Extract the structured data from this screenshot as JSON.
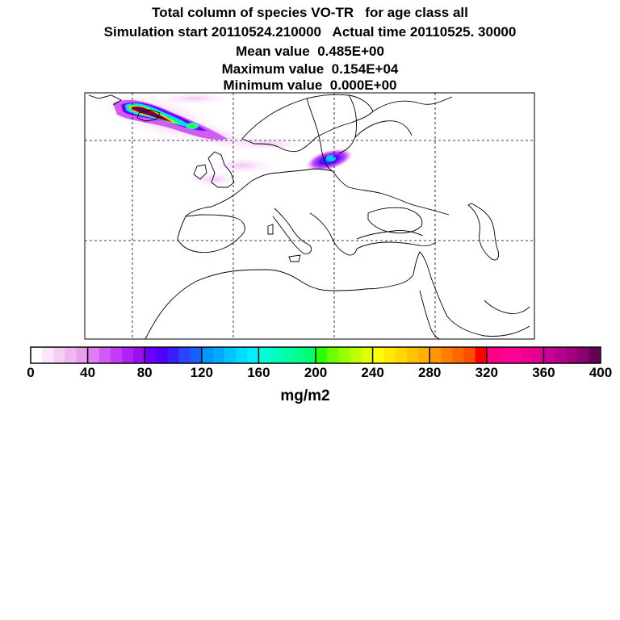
{
  "titles": {
    "line1": "Total column of species VO-TR   for age class all",
    "line2": "Simulation start 20110524.210000   Actual time 20110525. 30000",
    "line3": "Mean value  0.485E+00",
    "line4": "Maximum value  0.154E+04",
    "line5": "Minimum value  0.000E+00"
  },
  "colorbar": {
    "unit": "mg/m2",
    "tick_labels": [
      "0",
      "40",
      "80",
      "120",
      "160",
      "200",
      "240",
      "280",
      "320",
      "360",
      "400"
    ],
    "colors": [
      "#ffffff",
      "#fce6fc",
      "#f5cef5",
      "#eeb6f2",
      "#e6a0ee",
      "#e17ef3",
      "#d25af5",
      "#c43cf7",
      "#b020f7",
      "#9a10f0",
      "#6b00ff",
      "#5000ff",
      "#3a1cff",
      "#2a44ff",
      "#1560ff",
      "#0096ff",
      "#00aaff",
      "#00c4ff",
      "#00dcff",
      "#00f0ff",
      "#00ffd8",
      "#00ffbc",
      "#00ffa4",
      "#00ff8c",
      "#00ff70",
      "#28ff00",
      "#6cff00",
      "#96ff00",
      "#beff00",
      "#e0ff00",
      "#ffff00",
      "#ffeb00",
      "#ffd800",
      "#ffc400",
      "#ffb000",
      "#ff9800",
      "#ff8000",
      "#ff6800",
      "#ff4c00",
      "#ff0000",
      "#ff0080",
      "#ff0090",
      "#ff0098",
      "#f0008c",
      "#e20090",
      "#c80094",
      "#b4008c",
      "#a0007c",
      "#8a0070",
      "#660055"
    ]
  },
  "map": {
    "coastline_color": "#000000",
    "plume_peak_color": "#660055"
  }
}
